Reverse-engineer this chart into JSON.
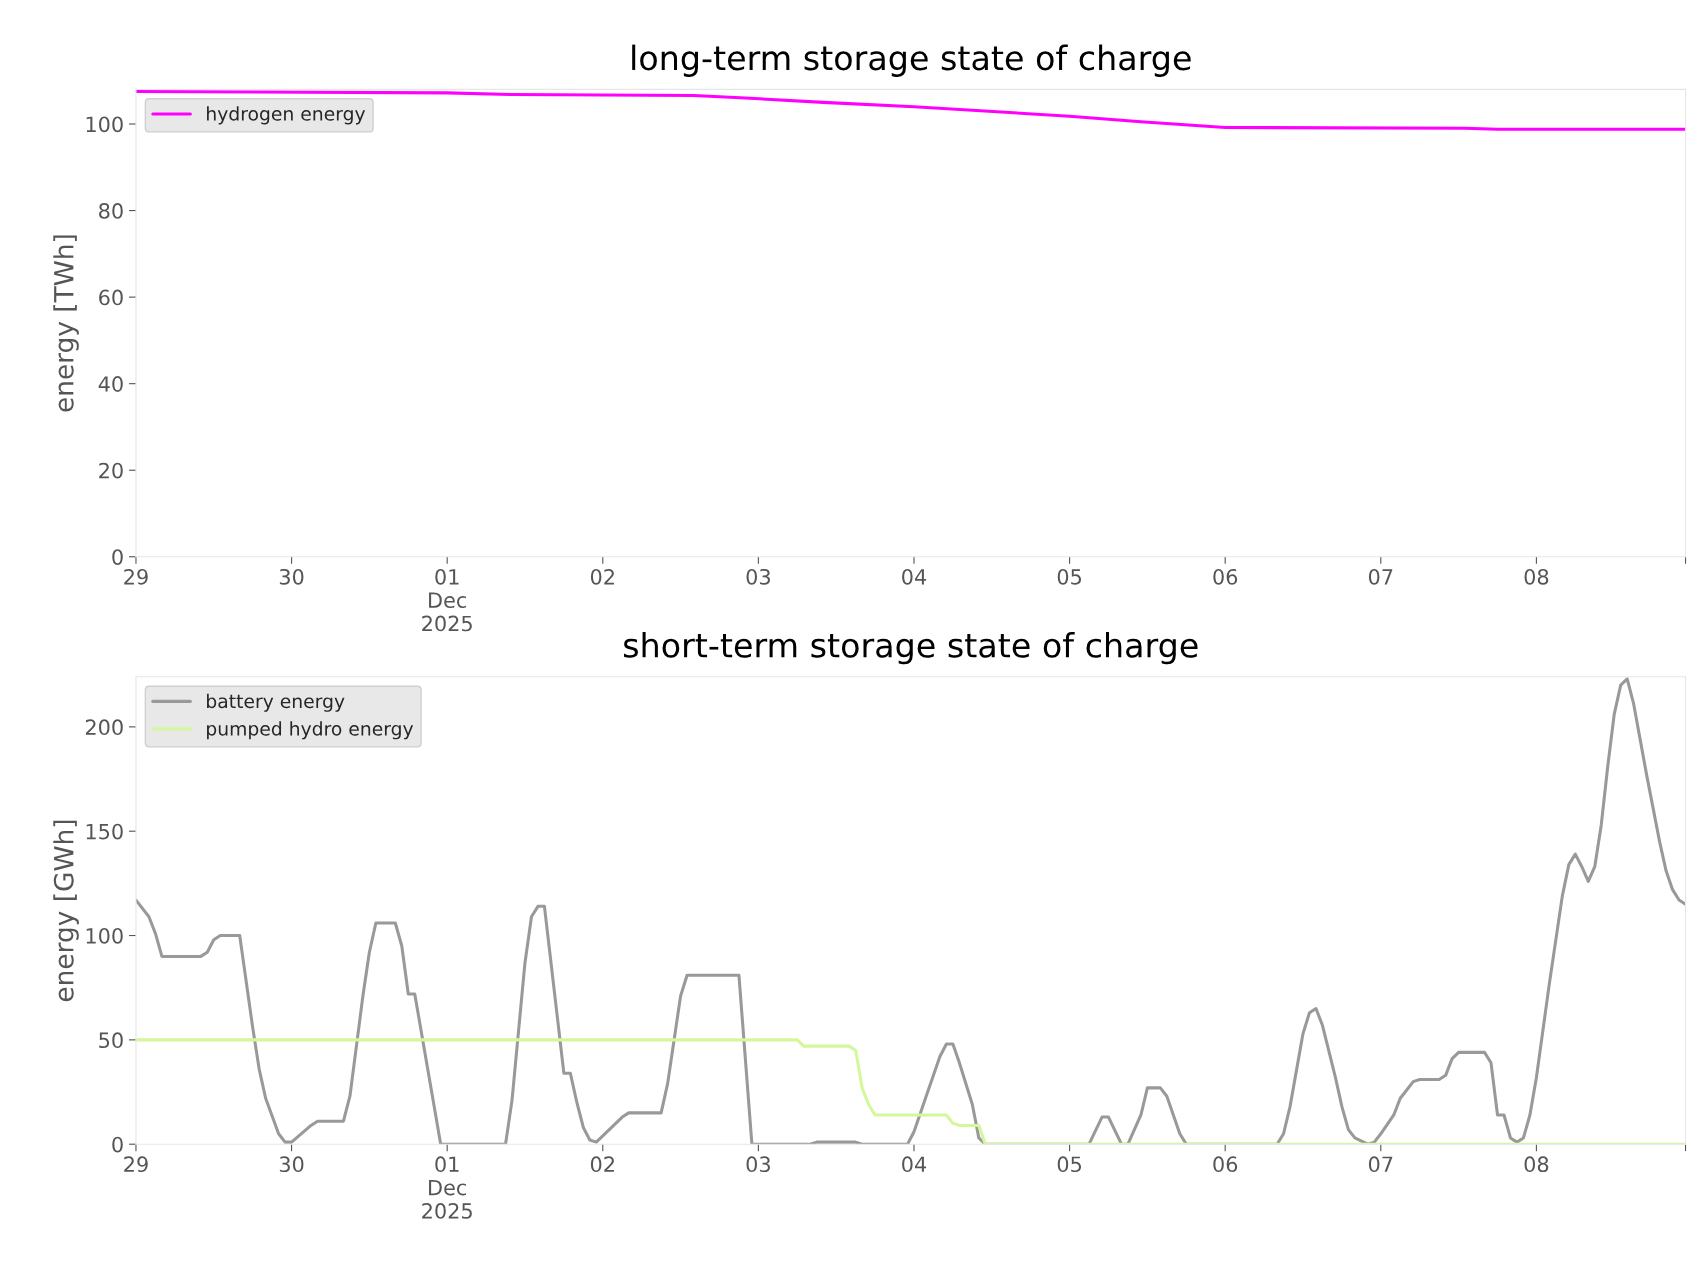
{
  "chart_data": [
    {
      "type": "line",
      "title": "long-term storage state of charge",
      "ylabel": "energy [TWh]",
      "legend": "top left",
      "grid": false,
      "xlim": [
        "2025-11-29T00:00",
        "2025-12-08T23:00"
      ],
      "xticks": [
        {
          "value": "2025-11-29",
          "label": "29"
        },
        {
          "value": "2025-11-30",
          "label": "30"
        },
        {
          "value": "2025-12-01",
          "label": "01\nDec\n2025"
        },
        {
          "value": "2025-12-02",
          "label": "02"
        },
        {
          "value": "2025-12-03",
          "label": "03"
        },
        {
          "value": "2025-12-04",
          "label": "04"
        },
        {
          "value": "2025-12-05",
          "label": "05"
        },
        {
          "value": "2025-12-06",
          "label": "06"
        },
        {
          "value": "2025-12-07",
          "label": "07"
        },
        {
          "value": "2025-12-08",
          "label": "08"
        },
        {
          "value": "2025-12-08T23:00",
          "label": null
        }
      ],
      "ylim": [
        0,
        108
      ],
      "yticks": [
        0,
        20,
        40,
        60,
        80,
        100
      ],
      "series": [
        {
          "name": "hydrogen energy",
          "color": "#ff00ff",
          "x": [
            "2025-11-29T00:00",
            "2025-12-01T00:00",
            "2025-12-01T10:00",
            "2025-12-02T14:00",
            "2025-12-02T22:00",
            "2025-12-03T10:00",
            "2025-12-04T00:00",
            "2025-12-05T00:00",
            "2025-12-05T11:00",
            "2025-12-06T00:00",
            "2025-12-07T13:00",
            "2025-12-07T18:00",
            "2025-12-08T23:00"
          ],
          "values": [
            107.5,
            107.2,
            106.8,
            106.6,
            106,
            105,
            104,
            101.8,
            100.5,
            99.2,
            99,
            98.8,
            98.8
          ]
        }
      ]
    },
    {
      "type": "line",
      "title": "short-term storage state of charge",
      "ylabel": "energy [GWh]",
      "legend": "top left",
      "grid": false,
      "xlim": [
        "2025-11-29T00:00",
        "2025-12-08T23:00"
      ],
      "xticks": [
        {
          "value": "2025-11-29",
          "label": "29"
        },
        {
          "value": "2025-11-30",
          "label": "30"
        },
        {
          "value": "2025-12-01",
          "label": "01\nDec\n2025"
        },
        {
          "value": "2025-12-02",
          "label": "02"
        },
        {
          "value": "2025-12-03",
          "label": "03"
        },
        {
          "value": "2025-12-04",
          "label": "04"
        },
        {
          "value": "2025-12-05",
          "label": "05"
        },
        {
          "value": "2025-12-06",
          "label": "06"
        },
        {
          "value": "2025-12-07",
          "label": "07"
        },
        {
          "value": "2025-12-08",
          "label": "08"
        },
        {
          "value": "2025-12-08T23:00",
          "label": null
        }
      ],
      "ylim": [
        0,
        224
      ],
      "yticks": [
        0,
        50,
        100,
        150,
        200
      ],
      "series": [
        {
          "name": "battery energy",
          "color": "#999999",
          "x": [
            "2025-11-29T00:00",
            "2025-11-29T02:00",
            "2025-11-29T03:00",
            "2025-11-29T04:00",
            "2025-11-29T10:00",
            "2025-11-29T11:00",
            "2025-11-29T12:00",
            "2025-11-29T13:00",
            "2025-11-29T16:00",
            "2025-11-29T18:00",
            "2025-11-29T19:00",
            "2025-11-29T20:00",
            "2025-11-29T22:00",
            "2025-11-29T23:00",
            "2025-11-30T00:00",
            "2025-11-30T03:00",
            "2025-11-30T04:00",
            "2025-11-30T08:00",
            "2025-11-30T09:00",
            "2025-11-30T11:00",
            "2025-11-30T12:00",
            "2025-11-30T13:00",
            "2025-11-30T16:00",
            "2025-11-30T17:00",
            "2025-11-30T18:00",
            "2025-11-30T19:00",
            "2025-11-30T23:00",
            "2025-12-01T09:00",
            "2025-12-01T10:00",
            "2025-12-01T12:00",
            "2025-12-01T13:00",
            "2025-12-01T14:00",
            "2025-12-01T15:00",
            "2025-12-01T18:00",
            "2025-12-01T19:00",
            "2025-12-01T20:00",
            "2025-12-01T21:00",
            "2025-12-01T22:00",
            "2025-12-01T23:00",
            "2025-12-02T02:00",
            "2025-12-02T03:00",
            "2025-12-02T04:00",
            "2025-12-02T09:00",
            "2025-12-02T10:00",
            "2025-12-02T12:00",
            "2025-12-02T13:00",
            "2025-12-02T21:00",
            "2025-12-02T23:00",
            "2025-12-03T08:00",
            "2025-12-03T09:00",
            "2025-12-03T15:00",
            "2025-12-03T16:00",
            "2025-12-03T23:00",
            "2025-12-04T00:00",
            "2025-12-04T02:00",
            "2025-12-04T04:00",
            "2025-12-04T05:00",
            "2025-12-04T06:00",
            "2025-12-04T07:00",
            "2025-12-04T09:00",
            "2025-12-04T10:00",
            "2025-12-04T11:00",
            "2025-12-05T03:00",
            "2025-12-05T05:00",
            "2025-12-05T06:00",
            "2025-12-05T08:00",
            "2025-12-05T09:00",
            "2025-12-05T11:00",
            "2025-12-05T12:00",
            "2025-12-05T14:00",
            "2025-12-05T15:00",
            "2025-12-05T17:00",
            "2025-12-05T18:00",
            "2025-12-06T08:00",
            "2025-12-06T09:00",
            "2025-12-06T10:00",
            "2025-12-06T12:00",
            "2025-12-06T13:00",
            "2025-12-06T14:00",
            "2025-12-06T15:00",
            "2025-12-06T17:00",
            "2025-12-06T18:00",
            "2025-12-06T19:00",
            "2025-12-06T20:00",
            "2025-12-06T22:00",
            "2025-12-06T23:00",
            "2025-12-07T00:00",
            "2025-12-07T02:00",
            "2025-12-07T03:00",
            "2025-12-07T04:00",
            "2025-12-07T05:00",
            "2025-12-07T06:00",
            "2025-12-07T09:00",
            "2025-12-07T10:00",
            "2025-12-07T11:00",
            "2025-12-07T12:00",
            "2025-12-07T16:00",
            "2025-12-07T17:00",
            "2025-12-07T18:00",
            "2025-12-07T19:00",
            "2025-12-07T20:00",
            "2025-12-07T21:00",
            "2025-12-07T22:00",
            "2025-12-07T23:00",
            "2025-12-08T00:00",
            "2025-12-08T02:00",
            "2025-12-08T04:00",
            "2025-12-08T05:00",
            "2025-12-08T06:00",
            "2025-12-08T07:00",
            "2025-12-08T08:00",
            "2025-12-08T09:00",
            "2025-12-08T10:00",
            "2025-12-08T11:00",
            "2025-12-08T12:00",
            "2025-12-08T13:00",
            "2025-12-08T14:00",
            "2025-12-08T15:00",
            "2025-12-08T17:00",
            "2025-12-08T19:00",
            "2025-12-08T20:00",
            "2025-12-08T21:00",
            "2025-12-08T22:00",
            "2025-12-08T23:00"
          ],
          "values": [
            117,
            109,
            101,
            90,
            90,
            92,
            98,
            100,
            100,
            56,
            36,
            22,
            5,
            1,
            1,
            9,
            11,
            11,
            23,
            71,
            92,
            106,
            106,
            95,
            72,
            72,
            0,
            0,
            21,
            87,
            109,
            114,
            114,
            34,
            34,
            20,
            8,
            2,
            1,
            10,
            13,
            15,
            15,
            29,
            71,
            81,
            81,
            0,
            0,
            1,
            1,
            0,
            0,
            6,
            24,
            42,
            48,
            48,
            39,
            19,
            3,
            0,
            0,
            13,
            13,
            0,
            0,
            14,
            27,
            27,
            23,
            5,
            0,
            0,
            5,
            18,
            53,
            63,
            65,
            57,
            32,
            18,
            7,
            3,
            0,
            1,
            5,
            14,
            22,
            26,
            30,
            31,
            31,
            33,
            41,
            44,
            44,
            39,
            14,
            14,
            3,
            1,
            3,
            14,
            32,
            77,
            119,
            134,
            139,
            133,
            126,
            133,
            153,
            181,
            206,
            220,
            223,
            211,
            177,
            145,
            131,
            122,
            117,
            115
          ]
        },
        {
          "name": "pumped hydro energy",
          "color": "#d4f79c",
          "x": [
            "2025-11-29T00:00",
            "2025-12-03T06:00",
            "2025-12-03T07:00",
            "2025-12-03T14:00",
            "2025-12-03T15:00",
            "2025-12-03T16:00",
            "2025-12-03T17:00",
            "2025-12-03T18:00",
            "2025-12-04T05:00",
            "2025-12-04T06:00",
            "2025-12-04T07:00",
            "2025-12-04T10:00",
            "2025-12-04T11:00",
            "2025-12-08T23:00"
          ],
          "values": [
            50,
            50,
            47,
            47,
            45,
            27,
            19,
            14,
            14,
            10,
            9,
            9,
            0,
            0
          ]
        }
      ]
    }
  ]
}
